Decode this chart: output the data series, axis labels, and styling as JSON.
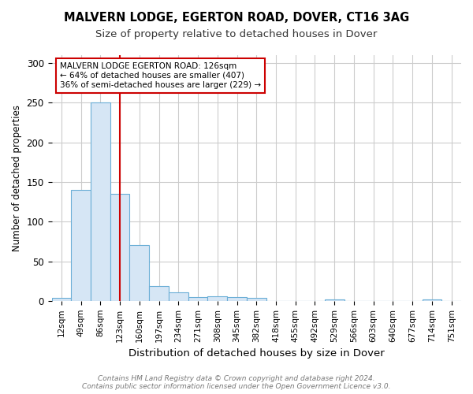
{
  "title1": "MALVERN LODGE, EGERTON ROAD, DOVER, CT16 3AG",
  "title2": "Size of property relative to detached houses in Dover",
  "xlabel": "Distribution of detached houses by size in Dover",
  "ylabel": "Number of detached properties",
  "bin_labels": [
    "12sqm",
    "49sqm",
    "86sqm",
    "123sqm",
    "160sqm",
    "197sqm",
    "234sqm",
    "271sqm",
    "308sqm",
    "345sqm",
    "382sqm",
    "418sqm",
    "455sqm",
    "492sqm",
    "529sqm",
    "566sqm",
    "603sqm",
    "640sqm",
    "677sqm",
    "714sqm",
    "751sqm"
  ],
  "bar_heights": [
    4,
    140,
    250,
    135,
    70,
    19,
    11,
    5,
    6,
    5,
    4,
    0,
    0,
    0,
    2,
    0,
    0,
    0,
    0,
    2,
    0
  ],
  "bar_color": "#d6e6f5",
  "bar_edge_color": "#6aaed6",
  "bar_edge_width": 0.8,
  "red_line_x": 3.0,
  "red_line_color": "#cc0000",
  "annotation_text": "MALVERN LODGE EGERTON ROAD: 126sqm\n← 64% of detached houses are smaller (407)\n36% of semi-detached houses are larger (229) →",
  "annotation_box_color": "white",
  "annotation_box_edge_color": "#cc0000",
  "ylim": [
    0,
    310
  ],
  "yticks": [
    0,
    50,
    100,
    150,
    200,
    250,
    300
  ],
  "grid_color": "#cccccc",
  "bg_color": "#ffffff",
  "footer1": "Contains HM Land Registry data © Crown copyright and database right 2024.",
  "footer2": "Contains public sector information licensed under the Open Government Licence v3.0.",
  "title1_fontsize": 10.5,
  "title2_fontsize": 9.5,
  "xlabel_fontsize": 9.5,
  "ylabel_fontsize": 8.5,
  "tick_fontsize": 7.5,
  "annotation_fontsize": 7.5,
  "footer_fontsize": 6.5
}
